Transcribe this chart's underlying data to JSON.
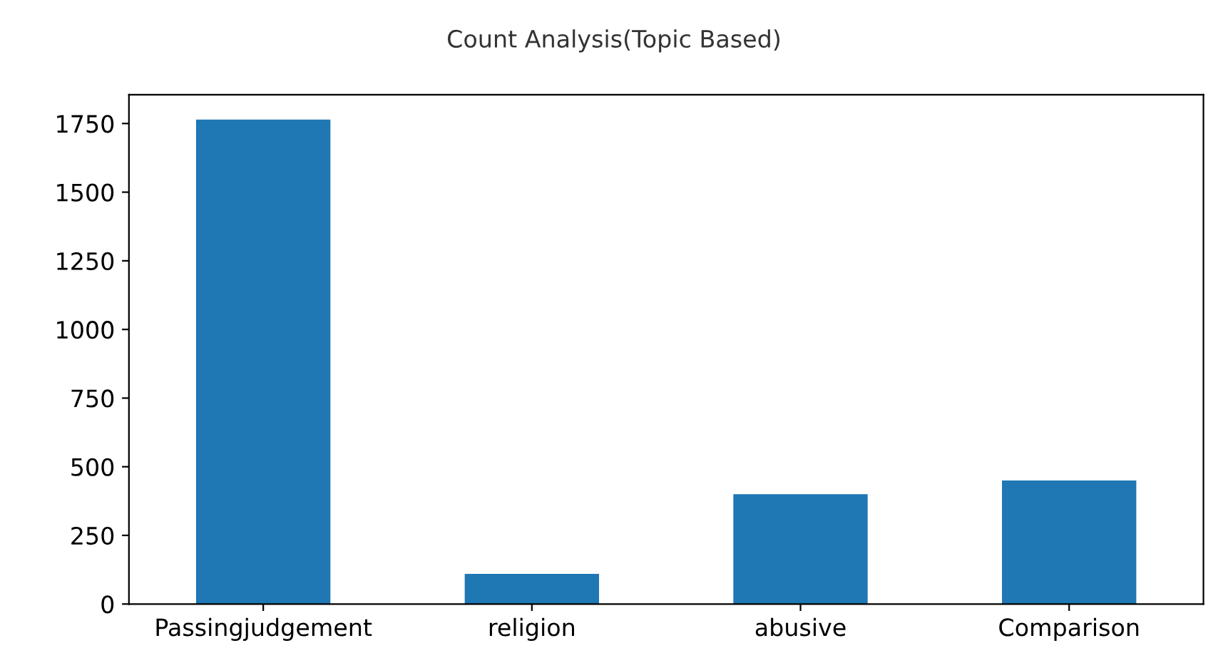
{
  "chart_data": {
    "type": "bar",
    "title": "Count Analysis(Topic Based)",
    "categories": [
      "Passingjudgement",
      "religion",
      "abusive",
      "Comparison"
    ],
    "values": [
      1764,
      110,
      400,
      450
    ],
    "color": "#1f77b4",
    "ylim": [
      0,
      1855
    ],
    "yticks": [
      0,
      250,
      500,
      750,
      1000,
      1250,
      1500,
      1750
    ],
    "grid": false,
    "legend": false
  }
}
